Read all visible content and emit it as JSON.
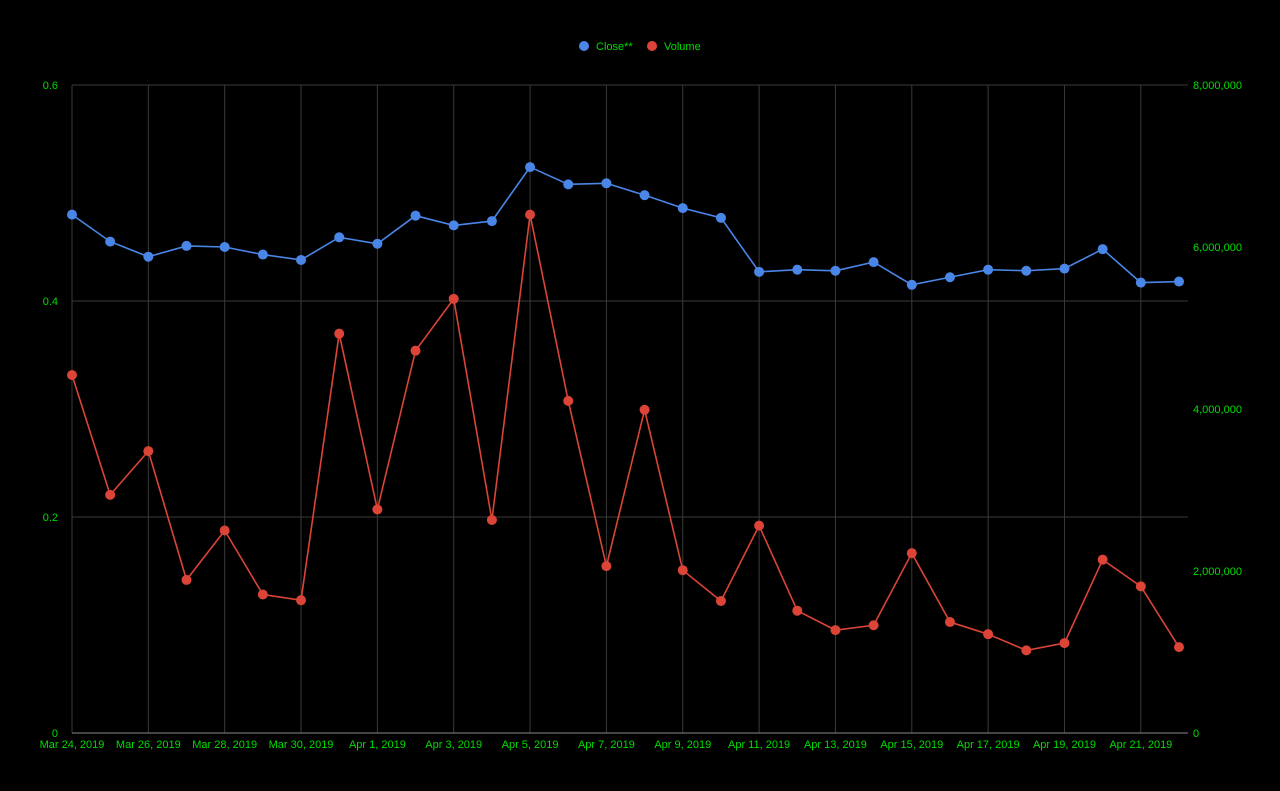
{
  "chart_data": {
    "type": "line",
    "x": [
      "2019-03-24",
      "2019-03-25",
      "2019-03-26",
      "2019-03-27",
      "2019-03-28",
      "2019-03-29",
      "2019-03-30",
      "2019-03-31",
      "2019-04-01",
      "2019-04-02",
      "2019-04-03",
      "2019-04-04",
      "2019-04-05",
      "2019-04-06",
      "2019-04-07",
      "2019-04-08",
      "2019-04-09",
      "2019-04-10",
      "2019-04-11",
      "2019-04-12",
      "2019-04-13",
      "2019-04-14",
      "2019-04-15",
      "2019-04-16",
      "2019-04-17",
      "2019-04-18",
      "2019-04-19",
      "2019-04-20",
      "2019-04-21",
      "2019-04-22"
    ],
    "x_tick_labels": [
      "Mar 24, 2019",
      "Mar 26, 2019",
      "Mar 28, 2019",
      "Mar 30, 2019",
      "Apr 1, 2019",
      "Apr 3, 2019",
      "Apr 5, 2019",
      "Apr 7, 2019",
      "Apr 9, 2019",
      "Apr 11, 2019",
      "Apr 13, 2019",
      "Apr 15, 2019",
      "Apr 17, 2019",
      "Apr 19, 2019",
      "Apr 21, 2019"
    ],
    "series": [
      {
        "name": "Close**",
        "axis": "left",
        "color": "#4a86e8",
        "values": [
          0.48,
          0.455,
          0.441,
          0.451,
          0.45,
          0.443,
          0.438,
          0.459,
          0.453,
          0.479,
          0.47,
          0.474,
          0.524,
          0.508,
          0.509,
          0.498,
          0.486,
          0.477,
          0.427,
          0.429,
          0.428,
          0.436,
          0.415,
          0.422,
          0.429,
          0.428,
          0.43,
          0.448,
          0.417,
          0.418
        ]
      },
      {
        "name": "Volume",
        "axis": "right",
        "color": "#db4437",
        "values": [
          4420000,
          2940000,
          3480000,
          1890000,
          2500000,
          1710000,
          1640000,
          4930000,
          2760000,
          4720000,
          5360000,
          2630000,
          6400000,
          4100000,
          2060000,
          3990000,
          2010000,
          1630000,
          2560000,
          1510000,
          1270000,
          1330000,
          2220000,
          1370000,
          1220000,
          1020000,
          1110000,
          2140000,
          1810000,
          1060000
        ]
      }
    ],
    "y_left": {
      "ylim": [
        0,
        0.6
      ],
      "ticks": [
        "0",
        "0.2",
        "0.4",
        "0.6"
      ]
    },
    "y_right": {
      "ylim": [
        0,
        8000000
      ],
      "ticks": [
        "0",
        "2,000,000",
        "4,000,000",
        "6,000,000",
        "8,000,000"
      ]
    },
    "grid": true,
    "legend_position": "top-center",
    "colors": {
      "background": "#000000",
      "tick_text": "#00dd00",
      "legend_text": "#00dd00",
      "grid": "#3a3a3a"
    }
  }
}
